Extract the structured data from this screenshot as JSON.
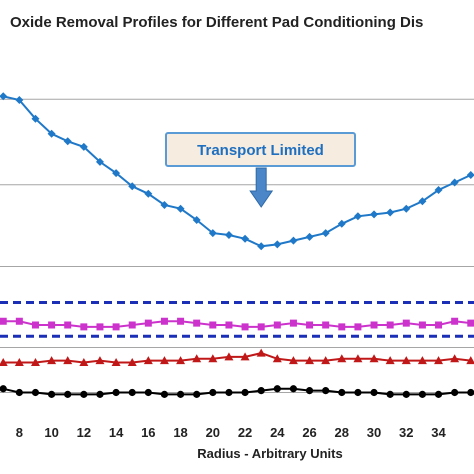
{
  "chart_data": {
    "type": "line",
    "title": "Oxide Removal Profiles for Different Pad Conditioning Dis",
    "xlabel": "Radius - Arbitrary Units",
    "ylabel": "",
    "xlim": [
      6.8,
      36.2
    ],
    "ylim": [
      0,
      100
    ],
    "x_ticks": [
      8,
      10,
      12,
      14,
      16,
      18,
      20,
      22,
      24,
      26,
      28,
      30,
      32,
      34
    ],
    "y_gridlines": [
      6,
      18,
      39.6,
      61.4,
      84.2
    ],
    "series": [
      {
        "color": "#1f78c8",
        "marker": "diamond",
        "points": [
          [
            7,
            85
          ],
          [
            8,
            84
          ],
          [
            9,
            79
          ],
          [
            10,
            75
          ],
          [
            11,
            73
          ],
          [
            12,
            71.5
          ],
          [
            13,
            67.5
          ],
          [
            14,
            64.5
          ],
          [
            15,
            61
          ],
          [
            16,
            59
          ],
          [
            17,
            56
          ],
          [
            18,
            55
          ],
          [
            19,
            52
          ],
          [
            20,
            48.5
          ],
          [
            21,
            48
          ],
          [
            22,
            47
          ],
          [
            23,
            45
          ],
          [
            24,
            45.5
          ],
          [
            25,
            46.5
          ],
          [
            26,
            47.5
          ],
          [
            27,
            48.5
          ],
          [
            28,
            51
          ],
          [
            29,
            53
          ],
          [
            30,
            53.5
          ],
          [
            31,
            54
          ],
          [
            32,
            55
          ],
          [
            33,
            57
          ],
          [
            34,
            60
          ],
          [
            35,
            62
          ],
          [
            36,
            64
          ]
        ]
      },
      {
        "color": "#cc33cc",
        "marker": "square",
        "points": [
          [
            7,
            25
          ],
          [
            8,
            25
          ],
          [
            9,
            24
          ],
          [
            10,
            24
          ],
          [
            11,
            24
          ],
          [
            12,
            23.5
          ],
          [
            13,
            23.5
          ],
          [
            14,
            23.5
          ],
          [
            15,
            24
          ],
          [
            16,
            24.5
          ],
          [
            17,
            25
          ],
          [
            18,
            25
          ],
          [
            19,
            24.5
          ],
          [
            20,
            24
          ],
          [
            21,
            24
          ],
          [
            22,
            23.5
          ],
          [
            23,
            23.5
          ],
          [
            24,
            24
          ],
          [
            25,
            24.5
          ],
          [
            26,
            24
          ],
          [
            27,
            24
          ],
          [
            28,
            23.5
          ],
          [
            29,
            23.5
          ],
          [
            30,
            24
          ],
          [
            31,
            24
          ],
          [
            32,
            24.5
          ],
          [
            33,
            24
          ],
          [
            34,
            24
          ],
          [
            35,
            25
          ],
          [
            36,
            24.5
          ]
        ]
      },
      {
        "color": "#c01818",
        "marker": "triangle",
        "points": [
          [
            7,
            14
          ],
          [
            8,
            14
          ],
          [
            9,
            14
          ],
          [
            10,
            14.5
          ],
          [
            11,
            14.5
          ],
          [
            12,
            14
          ],
          [
            13,
            14.5
          ],
          [
            14,
            14
          ],
          [
            15,
            14
          ],
          [
            16,
            14.5
          ],
          [
            17,
            14.5
          ],
          [
            18,
            14.5
          ],
          [
            19,
            15
          ],
          [
            20,
            15
          ],
          [
            21,
            15.5
          ],
          [
            22,
            15.5
          ],
          [
            23,
            16.5
          ],
          [
            24,
            15
          ],
          [
            25,
            14.5
          ],
          [
            26,
            14.5
          ],
          [
            27,
            14.5
          ],
          [
            28,
            15
          ],
          [
            29,
            15
          ],
          [
            30,
            15
          ],
          [
            31,
            14.5
          ],
          [
            32,
            14.5
          ],
          [
            33,
            14.5
          ],
          [
            34,
            14.5
          ],
          [
            35,
            15
          ],
          [
            36,
            14.5
          ]
        ]
      },
      {
        "color": "#000000",
        "marker": "circle",
        "points": [
          [
            7,
            7
          ],
          [
            8,
            6
          ],
          [
            9,
            6
          ],
          [
            10,
            5.5
          ],
          [
            11,
            5.5
          ],
          [
            12,
            5.5
          ],
          [
            13,
            5.5
          ],
          [
            14,
            6
          ],
          [
            15,
            6
          ],
          [
            16,
            6
          ],
          [
            17,
            5.5
          ],
          [
            18,
            5.5
          ],
          [
            19,
            5.5
          ],
          [
            20,
            6
          ],
          [
            21,
            6
          ],
          [
            22,
            6
          ],
          [
            23,
            6.5
          ],
          [
            24,
            7
          ],
          [
            25,
            7
          ],
          [
            26,
            6.5
          ],
          [
            27,
            6.5
          ],
          [
            28,
            6
          ],
          [
            29,
            6
          ],
          [
            30,
            6
          ],
          [
            31,
            5.5
          ],
          [
            32,
            5.5
          ],
          [
            33,
            5.5
          ],
          [
            34,
            5.5
          ],
          [
            35,
            6
          ],
          [
            36,
            6
          ]
        ]
      }
    ],
    "reference_lines": [
      {
        "y": 30,
        "color": "#1a2fb5",
        "style": "dashed"
      },
      {
        "y": 21,
        "color": "#1a2fb5",
        "style": "dashed"
      }
    ],
    "annotation": {
      "text": "Transport Limited",
      "box_fill": "#f6ece0",
      "box_border": "#5b9bd5",
      "arrow_color": "#4a86c8",
      "points_to_x": 23
    },
    "grid": true
  }
}
